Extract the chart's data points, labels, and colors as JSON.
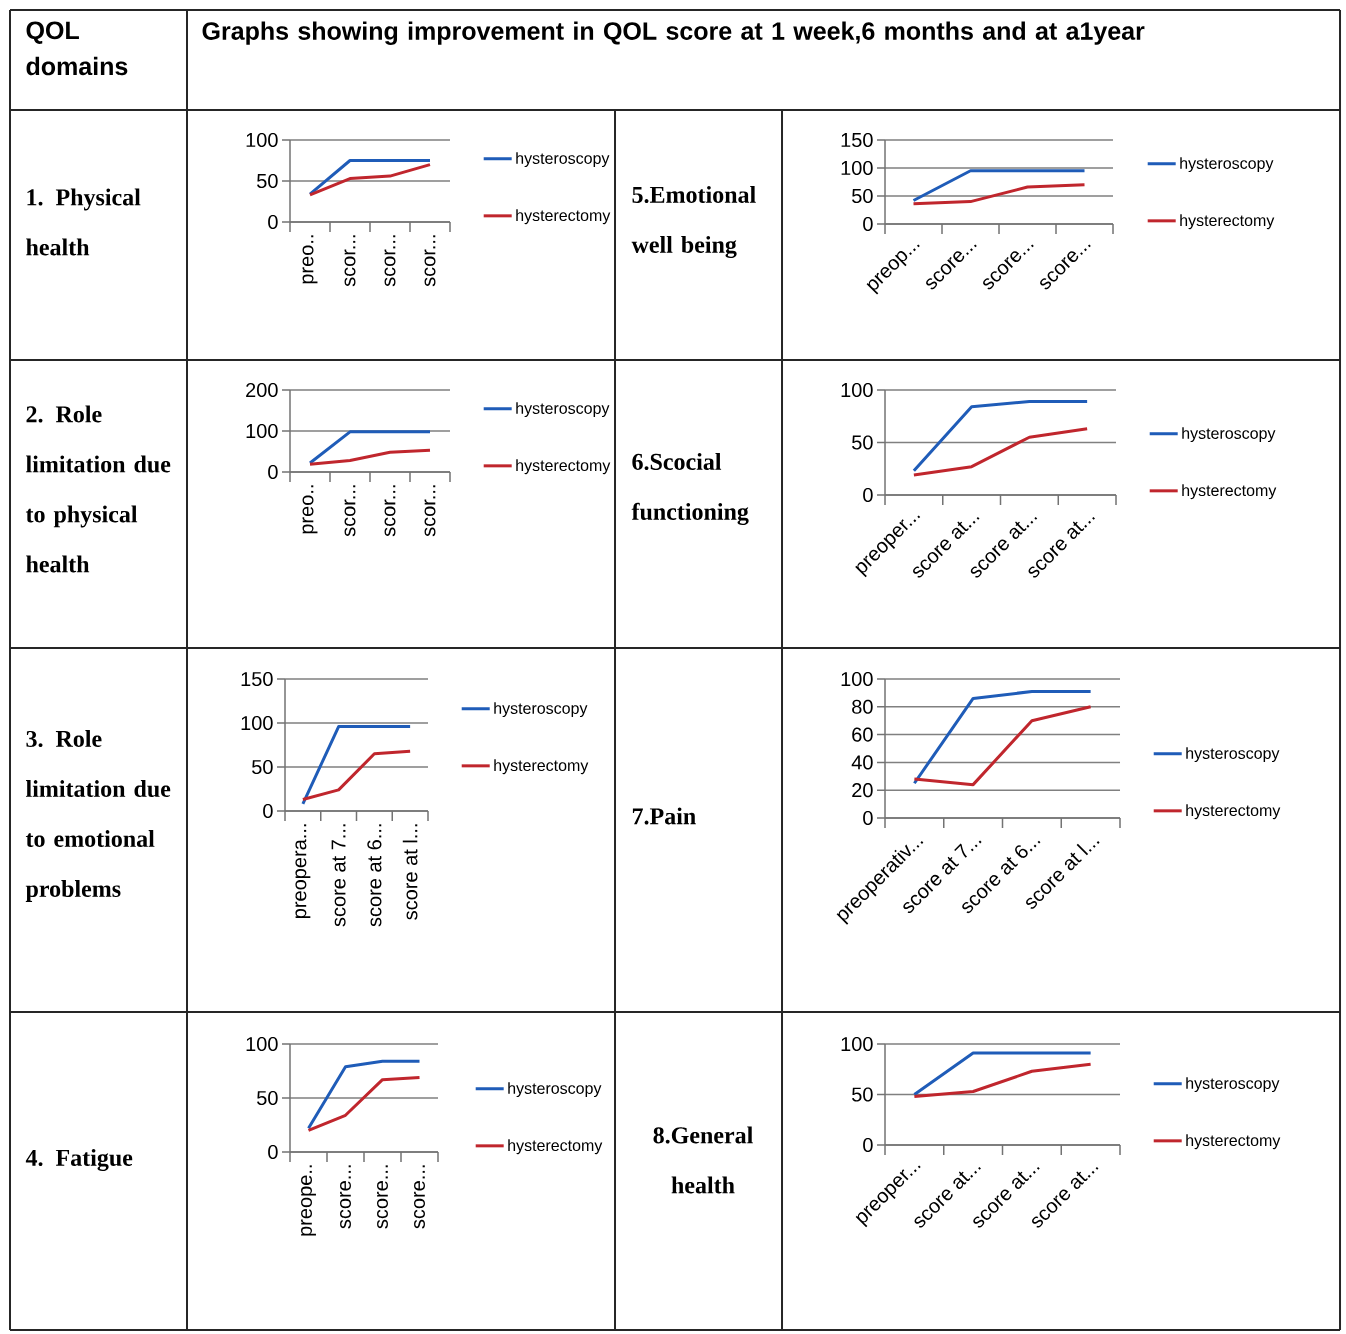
{
  "chart_data": [
    {
      "type": "other",
      "title": "QOL domains",
      "subtitle": "Graphs showing improvement in QOL score at 1 week,6 months and at a1year"
    },
    {
      "type": "line",
      "title": "1. Physical health",
      "categories": [
        "preo..",
        "scor...",
        "scor...",
        "scor..."
      ],
      "ylim": [
        0,
        100
      ],
      "yticks": [
        0,
        50,
        100
      ],
      "grid": "y",
      "legend": "right",
      "series": [
        {
          "name": "hysteroscopy",
          "color": "#1f5cb8",
          "values": [
            34,
            75,
            75,
            75
          ]
        },
        {
          "name": "hysterectomy",
          "color": "#c0262d",
          "values": [
            33,
            53,
            56,
            70
          ]
        }
      ]
    },
    {
      "type": "line",
      "title": "2. Role limitation due to physical health",
      "categories": [
        "preo..",
        "scor...",
        "scor...",
        "scor..."
      ],
      "ylim": [
        0,
        200
      ],
      "yticks": [
        0,
        100,
        200
      ],
      "grid": "y",
      "legend": "right",
      "series": [
        {
          "name": "hysteroscopy",
          "color": "#1f5cb8",
          "values": [
            22,
            98,
            98,
            98
          ]
        },
        {
          "name": "hysterectomy",
          "color": "#c0262d",
          "values": [
            19,
            28,
            48,
            53
          ]
        }
      ]
    },
    {
      "type": "line",
      "title": "3. Role limitation due to emotional problems",
      "categories": [
        "preopera...",
        "score at 7...",
        "score at 6...",
        "score at l..."
      ],
      "ylim": [
        0,
        150
      ],
      "yticks": [
        0,
        50,
        100,
        150
      ],
      "grid": "y",
      "legend": "right",
      "series": [
        {
          "name": "hysteroscopy",
          "color": "#1f5cb8",
          "values": [
            8,
            96,
            96,
            96
          ]
        },
        {
          "name": "hysterectomy",
          "color": "#c0262d",
          "values": [
            13,
            24,
            65,
            68
          ]
        }
      ]
    },
    {
      "type": "line",
      "title": "4. Fatigue",
      "categories": [
        "preope..",
        "score...",
        "score...",
        "score..."
      ],
      "ylim": [
        0,
        100
      ],
      "yticks": [
        0,
        50,
        100
      ],
      "grid": "y",
      "legend": "right",
      "series": [
        {
          "name": "hysteroscopy",
          "color": "#1f5cb8",
          "values": [
            22,
            79,
            84,
            84
          ]
        },
        {
          "name": "hysterectomy",
          "color": "#c0262d",
          "values": [
            20,
            34,
            67,
            69
          ]
        }
      ]
    },
    {
      "type": "line",
      "title": "5.Emotional well being",
      "categories": [
        "preop...",
        "score...",
        "score...",
        "score..."
      ],
      "ylim": [
        0,
        150
      ],
      "yticks": [
        0,
        50,
        100,
        150
      ],
      "grid": "y",
      "legend": "right",
      "series": [
        {
          "name": "hysteroscopy",
          "color": "#1f5cb8",
          "values": [
            42,
            95,
            95,
            95
          ]
        },
        {
          "name": "hysterectomy",
          "color": "#c0262d",
          "values": [
            36,
            40,
            66,
            70
          ]
        }
      ]
    },
    {
      "type": "line",
      "title": "6.Scocial functioning",
      "categories": [
        "preoper...",
        "score at...",
        "score at...",
        "score at..."
      ],
      "ylim": [
        0,
        100
      ],
      "yticks": [
        0,
        50,
        100
      ],
      "grid": "y",
      "legend": "right",
      "series": [
        {
          "name": "hysteroscopy",
          "color": "#1f5cb8",
          "values": [
            23,
            84,
            89,
            89
          ]
        },
        {
          "name": "hysterectomy",
          "color": "#c0262d",
          "values": [
            19,
            27,
            55,
            63
          ]
        }
      ]
    },
    {
      "type": "line",
      "title": "7.Pain",
      "categories": [
        "preoperativ...",
        "score at 7...",
        "score at 6...",
        "score at l..."
      ],
      "ylim": [
        0,
        100
      ],
      "yticks": [
        0,
        20,
        40,
        60,
        80,
        100
      ],
      "grid": "y",
      "legend": "right",
      "series": [
        {
          "name": "hysteroscopy",
          "color": "#1f5cb8",
          "values": [
            25,
            86,
            91,
            91
          ]
        },
        {
          "name": "hysterectomy",
          "color": "#c0262d",
          "values": [
            28,
            24,
            70,
            80
          ]
        }
      ]
    },
    {
      "type": "line",
      "title": "8.General health",
      "categories": [
        "preoper...",
        "score at...",
        "score at...",
        "score at..."
      ],
      "ylim": [
        0,
        100
      ],
      "yticks": [
        0,
        50,
        100
      ],
      "grid": "y",
      "legend": "right",
      "series": [
        {
          "name": "hysteroscopy",
          "color": "#1f5cb8",
          "values": [
            50,
            91,
            91,
            91
          ]
        },
        {
          "name": "hysterectomy",
          "color": "#c0262d",
          "values": [
            48,
            53,
            73,
            80
          ]
        }
      ]
    }
  ]
}
